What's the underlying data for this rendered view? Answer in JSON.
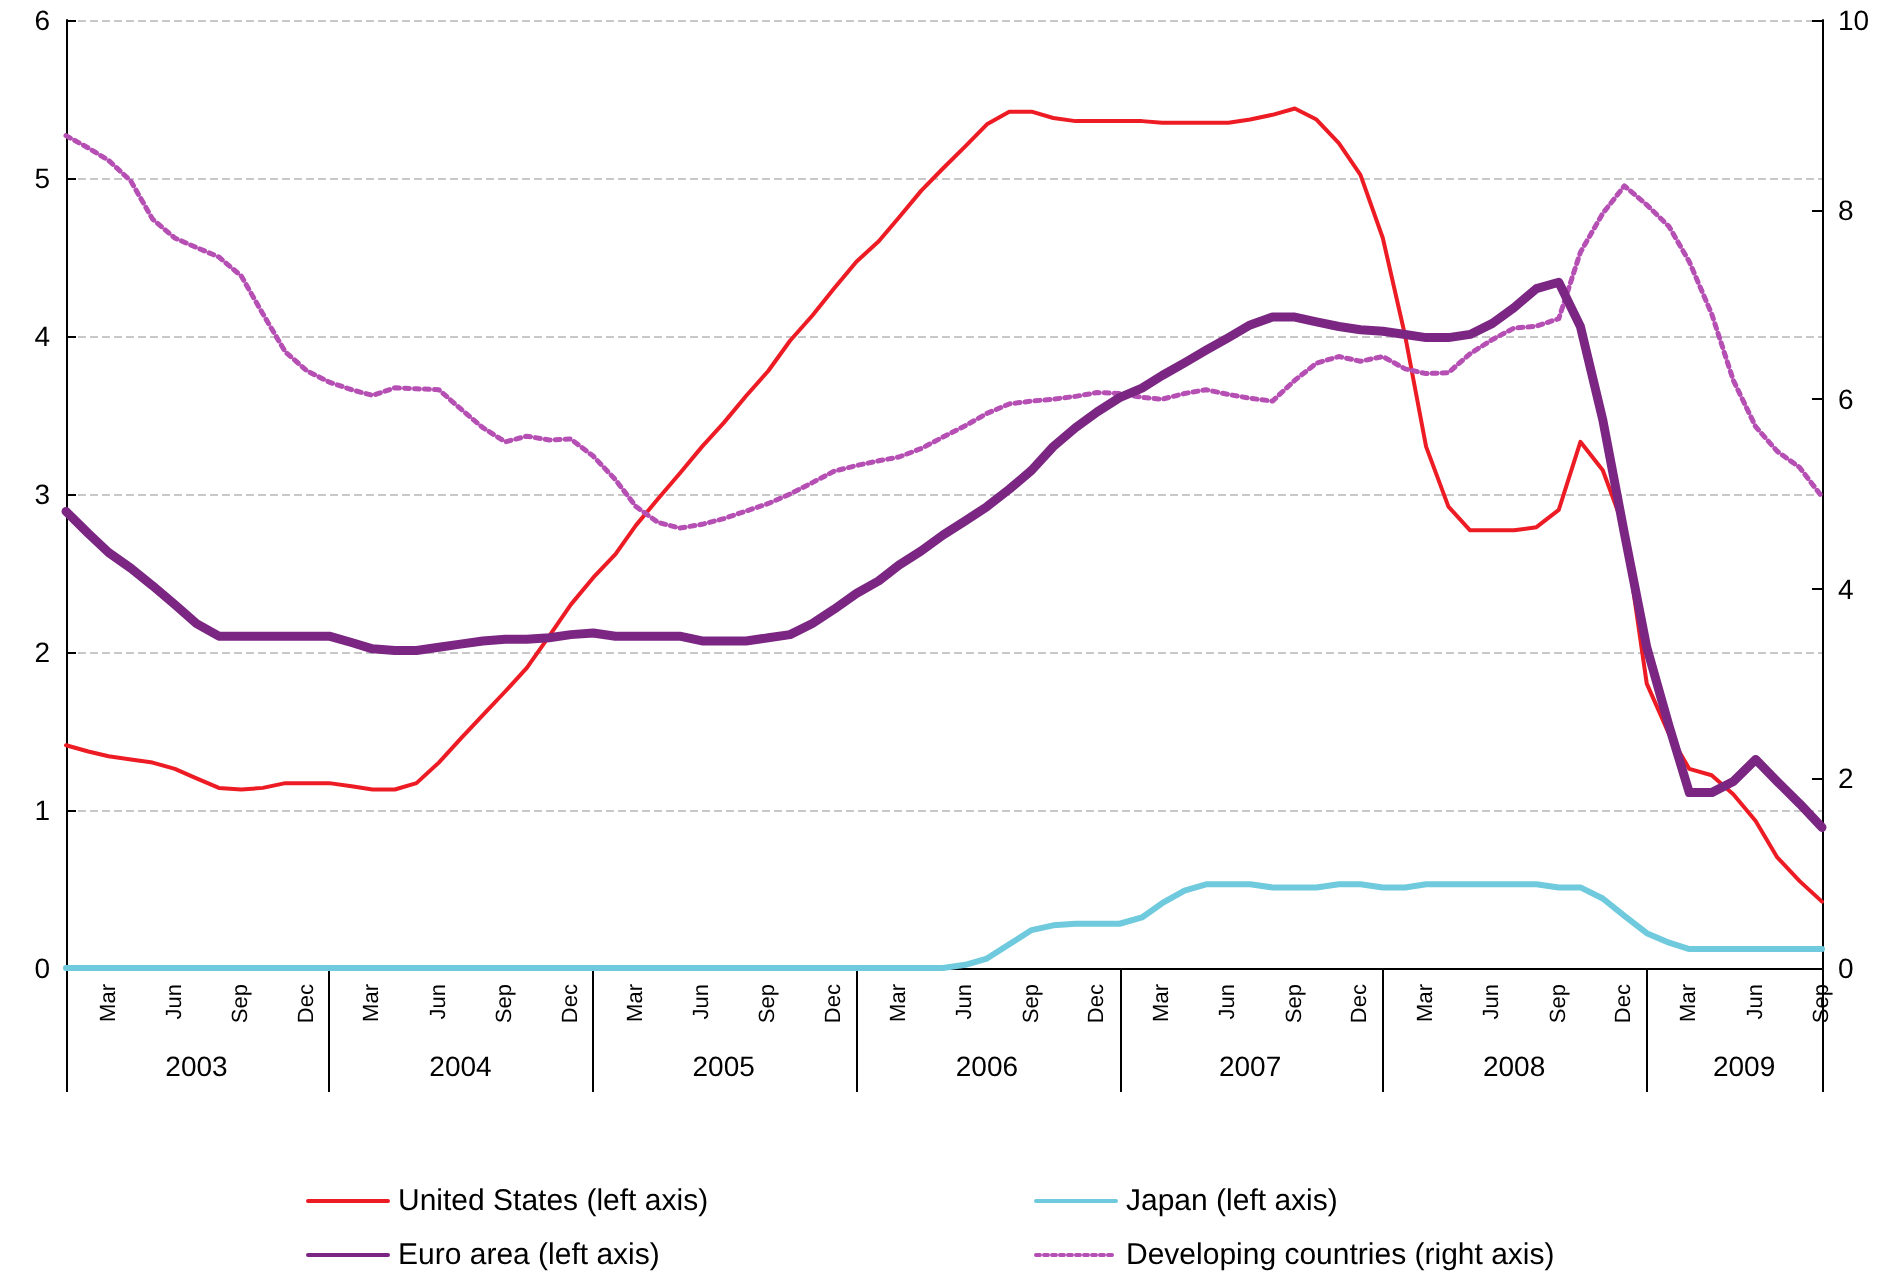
{
  "chart_data": {
    "type": "line",
    "x": [
      "2003-01",
      "2003-02",
      "2003-03",
      "2003-04",
      "2003-05",
      "2003-06",
      "2003-07",
      "2003-08",
      "2003-09",
      "2003-10",
      "2003-11",
      "2003-12",
      "2004-01",
      "2004-02",
      "2004-03",
      "2004-04",
      "2004-05",
      "2004-06",
      "2004-07",
      "2004-08",
      "2004-09",
      "2004-10",
      "2004-11",
      "2004-12",
      "2005-01",
      "2005-02",
      "2005-03",
      "2005-04",
      "2005-05",
      "2005-06",
      "2005-07",
      "2005-08",
      "2005-09",
      "2005-10",
      "2005-11",
      "2005-12",
      "2006-01",
      "2006-02",
      "2006-03",
      "2006-04",
      "2006-05",
      "2006-06",
      "2006-07",
      "2006-08",
      "2006-09",
      "2006-10",
      "2006-11",
      "2006-12",
      "2007-01",
      "2007-02",
      "2007-03",
      "2007-04",
      "2007-05",
      "2007-06",
      "2007-07",
      "2007-08",
      "2007-09",
      "2007-10",
      "2007-11",
      "2007-12",
      "2008-01",
      "2008-02",
      "2008-03",
      "2008-04",
      "2008-05",
      "2008-06",
      "2008-07",
      "2008-08",
      "2008-09",
      "2008-10",
      "2008-11",
      "2008-12",
      "2009-01",
      "2009-02",
      "2009-03",
      "2009-04",
      "2009-05",
      "2009-06",
      "2009-07",
      "2009-08",
      "2009-09"
    ],
    "series": [
      {
        "name": "United States (left axis)",
        "color": "#ed1c24",
        "line_style": "solid",
        "values": [
          1.41,
          1.37,
          1.34,
          1.32,
          1.3,
          1.26,
          1.2,
          1.14,
          1.13,
          1.14,
          1.17,
          1.17,
          1.17,
          1.15,
          1.13,
          1.13,
          1.17,
          1.3,
          1.45,
          1.6,
          1.75,
          1.9,
          2.1,
          2.3,
          2.47,
          2.62,
          2.8,
          2.97,
          3.13,
          3.3,
          3.45,
          3.62,
          3.78,
          3.97,
          4.13,
          4.3,
          4.47,
          4.6,
          4.75,
          4.92,
          5.06,
          5.2,
          5.34,
          5.42,
          5.42,
          5.38,
          5.36,
          5.36,
          5.36,
          5.36,
          5.35,
          5.35,
          5.35,
          5.35,
          5.37,
          5.4,
          5.44,
          5.37,
          5.22,
          5.02,
          4.62,
          4.0,
          3.3,
          2.92,
          2.77,
          2.77,
          2.77,
          2.79,
          2.9,
          3.33,
          3.15,
          2.78,
          1.8,
          1.48,
          1.26,
          1.22,
          1.1,
          0.93,
          0.7,
          0.55,
          0.42
        ]
      },
      {
        "name": "Japan (left axis)",
        "color": "#6ecadc",
        "line_style": "solid",
        "values": [
          0,
          0,
          0,
          0,
          0,
          0,
          0,
          0,
          0,
          0,
          0,
          0,
          0,
          0,
          0,
          0,
          0,
          0,
          0,
          0,
          0,
          0,
          0,
          0,
          0,
          0,
          0,
          0,
          0,
          0,
          0,
          0,
          0,
          0,
          0,
          0,
          0,
          0,
          0,
          0,
          0,
          0.02,
          0.06,
          0.15,
          0.24,
          0.27,
          0.28,
          0.28,
          0.28,
          0.32,
          0.41,
          0.49,
          0.53,
          0.53,
          0.53,
          0.51,
          0.51,
          0.51,
          0.53,
          0.53,
          0.51,
          0.51,
          0.53,
          0.53,
          0.53,
          0.53,
          0.53,
          0.53,
          0.51,
          0.51,
          0.44,
          0.33,
          0.22,
          0.16,
          0.12,
          0.12,
          0.12,
          0.12,
          0.12,
          0.12,
          0.12
        ]
      },
      {
        "name": "Euro area (left axis)",
        "color": "#7b2682",
        "line_style": "solid",
        "values": [
          2.89,
          2.75,
          2.63,
          2.53,
          2.42,
          2.3,
          2.18,
          2.1,
          2.1,
          2.1,
          2.1,
          2.1,
          2.1,
          2.06,
          2.02,
          2.01,
          2.01,
          2.03,
          2.05,
          2.07,
          2.08,
          2.08,
          2.09,
          2.11,
          2.12,
          2.1,
          2.1,
          2.1,
          2.1,
          2.07,
          2.07,
          2.07,
          2.09,
          2.11,
          2.18,
          2.27,
          2.37,
          2.45,
          2.55,
          2.64,
          2.74,
          2.83,
          2.92,
          3.03,
          3.15,
          3.3,
          3.42,
          3.52,
          3.61,
          3.67,
          3.75,
          3.83,
          3.91,
          3.99,
          4.07,
          4.12,
          4.12,
          4.09,
          4.06,
          4.04,
          4.03,
          4.01,
          3.99,
          3.99,
          4.01,
          4.08,
          4.18,
          4.3,
          4.34,
          4.06,
          3.47,
          2.75,
          2.03,
          1.53,
          1.11,
          1.11,
          1.18,
          1.32,
          1.18,
          1.04,
          0.89
        ]
      },
      {
        "name": "Developing countries (right axis)",
        "color": "#b54fb3",
        "line_style": "dotted",
        "axis": "y2",
        "values": [
          8.78,
          8.65,
          8.52,
          8.3,
          7.9,
          7.7,
          7.6,
          7.5,
          7.3,
          6.9,
          6.5,
          6.3,
          6.18,
          6.1,
          6.04,
          6.12,
          6.11,
          6.1,
          5.9,
          5.7,
          5.55,
          5.61,
          5.57,
          5.58,
          5.4,
          5.15,
          4.87,
          4.7,
          4.64,
          4.68,
          4.74,
          4.82,
          4.9,
          5.0,
          5.12,
          5.24,
          5.3,
          5.35,
          5.39,
          5.48,
          5.6,
          5.72,
          5.85,
          5.95,
          5.98,
          6.0,
          6.03,
          6.07,
          6.06,
          6.02,
          6.0,
          6.06,
          6.1,
          6.05,
          6.01,
          5.98,
          6.2,
          6.38,
          6.45,
          6.4,
          6.45,
          6.32,
          6.27,
          6.28,
          6.48,
          6.63,
          6.75,
          6.77,
          6.85,
          7.55,
          7.96,
          8.25,
          8.05,
          7.82,
          7.45,
          6.9,
          6.2,
          5.71,
          5.45,
          5.28,
          4.97
        ]
      }
    ],
    "xlim": [
      "2003-01",
      "2009-09"
    ],
    "xticks": [
      {
        "value": "2003-01",
        "label": null
      },
      {
        "value": "2004-01",
        "label": null
      },
      {
        "value": "2005-01",
        "label": null
      },
      {
        "value": "2006-01",
        "label": null
      },
      {
        "value": "2007-01",
        "label": null
      },
      {
        "value": "2008-01",
        "label": null
      },
      {
        "value": "2009-01",
        "label": null
      },
      {
        "value": "2009-09",
        "label": null
      },
      {
        "value": "2003-03",
        "label": "Mar"
      },
      {
        "value": "2003-06",
        "label": "Jun"
      },
      {
        "value": "2003-09",
        "label": "Sep"
      },
      {
        "value": "2003-12",
        "label": "Dec"
      },
      {
        "value": "2004-03",
        "label": "Mar"
      },
      {
        "value": "2004-06",
        "label": "Jun"
      },
      {
        "value": "2004-09",
        "label": "Sep"
      },
      {
        "value": "2004-12",
        "label": "Dec"
      },
      {
        "value": "2005-03",
        "label": "Mar"
      },
      {
        "value": "2005-06",
        "label": "Jun"
      },
      {
        "value": "2005-09",
        "label": "Sep"
      },
      {
        "value": "2005-12",
        "label": "Dec"
      },
      {
        "value": "2006-03",
        "label": "Mar"
      },
      {
        "value": "2006-06",
        "label": "Jun"
      },
      {
        "value": "2006-09",
        "label": "Sep"
      },
      {
        "value": "2006-12",
        "label": "Dec"
      },
      {
        "value": "2007-03",
        "label": "Mar"
      },
      {
        "value": "2007-06",
        "label": "Jun"
      },
      {
        "value": "2007-09",
        "label": "Sep"
      },
      {
        "value": "2007-12",
        "label": "Dec"
      },
      {
        "value": "2008-03",
        "label": "Mar"
      },
      {
        "value": "2008-06",
        "label": "Jun"
      },
      {
        "value": "2008-09",
        "label": "Sep"
      },
      {
        "value": "2008-12",
        "label": "Dec"
      },
      {
        "value": "2009-03",
        "label": "Mar"
      },
      {
        "value": "2009-06",
        "label": "Jun"
      },
      {
        "value": "2009-09",
        "label": "Sep"
      }
    ],
    "x2lim": [
      "2003-01",
      "2009-09"
    ],
    "x2ticks": [
      {
        "value": "2003-07",
        "label": "2003"
      },
      {
        "value": "2004-07",
        "label": "2004"
      },
      {
        "value": "2005-07",
        "label": "2005"
      },
      {
        "value": "2006-07",
        "label": "2006"
      },
      {
        "value": "2007-07",
        "label": "2007"
      },
      {
        "value": "2008-07",
        "label": "2008"
      },
      {
        "value": "2009-05-16",
        "label": "2009"
      }
    ],
    "ylim": [
      0,
      6
    ],
    "yticks": [
      0,
      1,
      2,
      3,
      4,
      5,
      6
    ],
    "y2lim": [
      0,
      10
    ],
    "y2ticks": [
      0,
      2,
      4,
      6,
      8,
      10
    ],
    "grid": "y",
    "legend": "bottom",
    "marker": "none"
  }
}
